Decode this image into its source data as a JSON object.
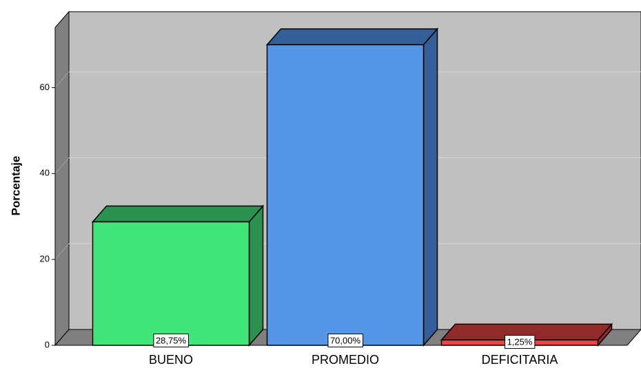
{
  "chart_data": {
    "type": "bar3d",
    "ylabel": "Porcentaje",
    "categories": [
      "BUENO",
      "PROMEDIO",
      "DEFICITARIA"
    ],
    "values": [
      28.75,
      70,
      1.25
    ],
    "value_labels": [
      "28,75%",
      "70,00%",
      "1,25%"
    ],
    "colors": [
      "#40e67a",
      "#5596e6",
      "#e94545"
    ],
    "shade_colors": [
      "#2a9150",
      "#345f96",
      "#932a2a"
    ],
    "ylim": [
      0,
      74
    ],
    "yticks": [
      0,
      20,
      40,
      60
    ],
    "grid": true
  }
}
